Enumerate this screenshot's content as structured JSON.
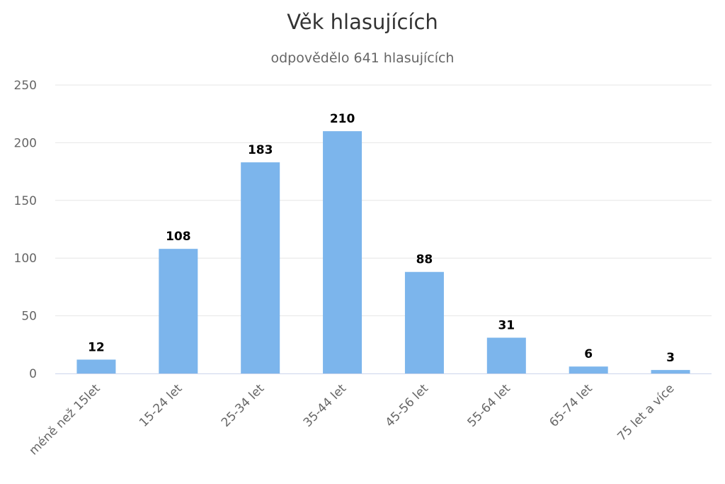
{
  "chart_data": {
    "type": "bar",
    "title": "Věk hlasujících",
    "subtitle": "odpovědělo 641 hlasujících",
    "xlabel": "",
    "ylabel": "",
    "categories": [
      "méně než 15let",
      "15-24 let",
      "25-34 let",
      "35-44 let",
      "45-56 let",
      "55-64 let",
      "65-74 let",
      "75 let a více"
    ],
    "values": [
      12,
      108,
      183,
      210,
      88,
      31,
      6,
      3
    ],
    "data_labels": [
      "12",
      "108",
      "183",
      "210",
      "88",
      "31",
      "6",
      "3"
    ],
    "ylim": [
      0,
      250
    ],
    "y_ticks": [
      0,
      50,
      100,
      150,
      200,
      250
    ],
    "y_tick_labels": [
      "0",
      "50",
      "100",
      "150",
      "200",
      "250"
    ],
    "grid": true,
    "legend": "none",
    "bar_color": "#7cb5ec"
  }
}
